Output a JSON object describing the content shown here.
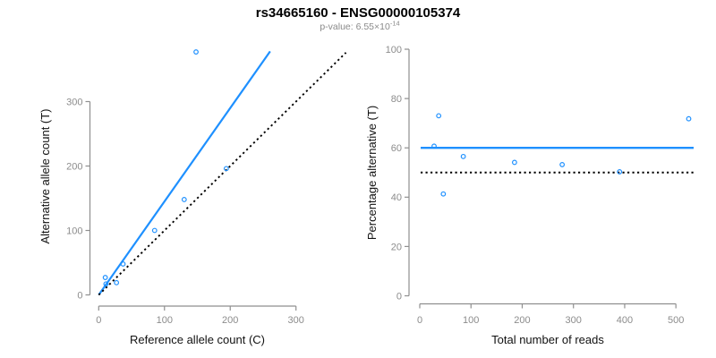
{
  "figure": {
    "title": "rs34665160 - ENSG00000105374",
    "subtitle": {
      "text": "p-value: 6.55×10",
      "exponent": "-14"
    }
  },
  "colors": {
    "accent_blue": "#1E90FF",
    "dotted_black": "#000000",
    "axis_gray": "#8f8f8f",
    "tick_label_gray": "#8c8c8c",
    "background": "#ffffff"
  },
  "chart_data": [
    {
      "id": "allele-counts-scatter",
      "type": "scatter",
      "xlabel": "Reference allele count (C)",
      "ylabel": "Alternative allele count (T)",
      "x": [
        11,
        10,
        27,
        37,
        85,
        130,
        194,
        148
      ],
      "y": [
        17,
        27,
        19,
        48,
        100,
        148,
        196,
        377
      ],
      "xticks": [
        0,
        100,
        200,
        300
      ],
      "yticks": [
        0,
        100,
        200,
        300
      ],
      "xlim": [
        0,
        382
      ],
      "ylim": [
        0,
        382
      ],
      "grid": false,
      "legend": "none",
      "point_style": "open-circle",
      "lines": [
        {
          "name": "allelic-ratio-fit-line",
          "style": "solid",
          "color": "#1E90FF",
          "x1": 0,
          "y1": 0,
          "x2": 260.7,
          "y2": 378
        },
        {
          "name": "identity-line",
          "style": "dotted",
          "color": "#000000",
          "x1": 0,
          "y1": 0,
          "x2": 376,
          "y2": 376
        }
      ]
    },
    {
      "id": "percentage-vs-coverage-scatter",
      "type": "scatter",
      "xlabel": "Total number of reads",
      "ylabel": "Percentage alternative (T)",
      "x": [
        28,
        37,
        46,
        85,
        185,
        278,
        390,
        525
      ],
      "y": [
        60.7,
        73.0,
        41.3,
        56.5,
        54.1,
        53.2,
        50.3,
        71.8
      ],
      "xticks": [
        0,
        100,
        200,
        300,
        400,
        500
      ],
      "yticks": [
        0,
        20,
        40,
        60,
        80,
        100
      ],
      "xlim": [
        0,
        533
      ],
      "ylim": [
        0,
        100
      ],
      "grid": false,
      "legend": "none",
      "point_style": "open-circle",
      "hlines": [
        {
          "name": "mean-percentage-line",
          "style": "solid",
          "color": "#1E90FF",
          "y": 60
        },
        {
          "name": "fifty-percent-line",
          "style": "dotted",
          "color": "#000000",
          "y": 50
        }
      ]
    }
  ]
}
